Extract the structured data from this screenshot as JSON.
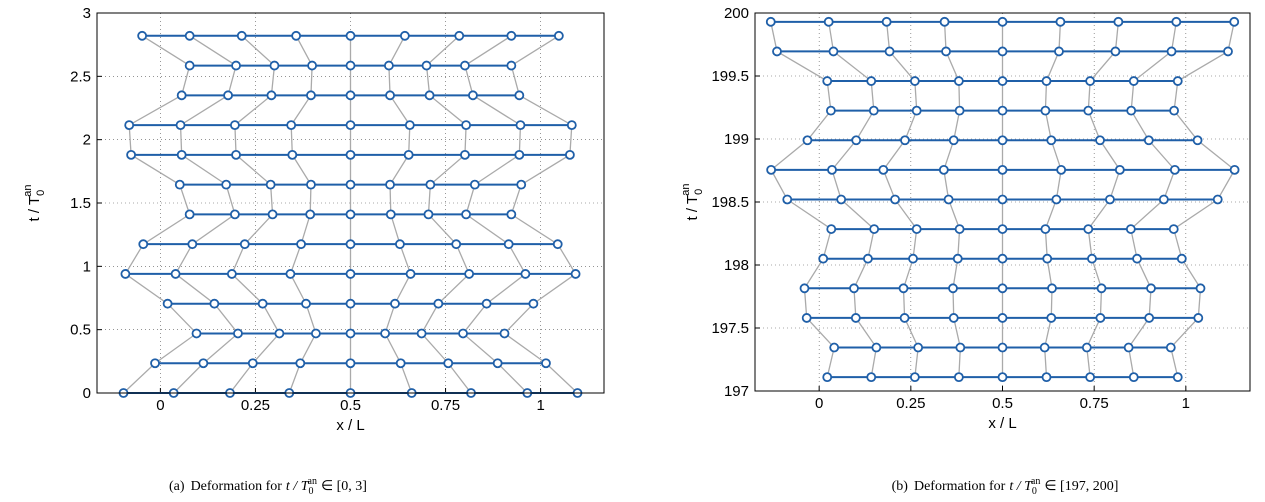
{
  "chart_data": [
    {
      "type": "chain",
      "caption": {
        "label": "(a)",
        "text": "Deformation for",
        "var": "t / T",
        "sub": "0",
        "sup": "an",
        "range": "∈ [0, 3]"
      },
      "xlabel": "x / L",
      "ylabel": {
        "text": "t / T",
        "sub": "0",
        "sup": "an"
      },
      "xlim": [
        -0.1667,
        1.1667
      ],
      "ylim": [
        0,
        3
      ],
      "xticks": [
        0,
        0.25,
        0.5,
        0.75,
        1
      ],
      "yticks": [
        0,
        0.5,
        1,
        1.5,
        2,
        2.5,
        3
      ],
      "grid": true,
      "line_color": "#1f5fa8",
      "trajectory_color": "#aaaaaa",
      "rows": [
        {
          "t": 0,
          "x": [
            -0.097,
            0.035,
            0.183,
            0.339,
            0.5,
            0.661,
            0.817,
            0.965,
            1.097
          ]
        },
        {
          "t": 0.235,
          "x": [
            -0.014,
            0.113,
            0.243,
            0.368,
            0.5,
            0.632,
            0.757,
            0.887,
            1.014
          ]
        },
        {
          "t": 0.47,
          "x": [
            0.095,
            0.204,
            0.313,
            0.409,
            0.5,
            0.591,
            0.687,
            0.796,
            0.905
          ]
        },
        {
          "t": 0.705,
          "x": [
            0.019,
            0.142,
            0.269,
            0.383,
            0.5,
            0.617,
            0.731,
            0.858,
            0.981
          ]
        },
        {
          "t": 0.94,
          "x": [
            -0.092,
            0.04,
            0.188,
            0.342,
            0.5,
            0.658,
            0.812,
            0.96,
            1.092
          ]
        },
        {
          "t": 1.175,
          "x": [
            -0.045,
            0.084,
            0.222,
            0.37,
            0.5,
            0.63,
            0.778,
            0.916,
            1.045
          ]
        },
        {
          "t": 1.41,
          "x": [
            0.077,
            0.196,
            0.295,
            0.394,
            0.5,
            0.606,
            0.705,
            0.804,
            0.923
          ]
        },
        {
          "t": 1.645,
          "x": [
            0.051,
            0.173,
            0.29,
            0.396,
            0.5,
            0.604,
            0.71,
            0.827,
            0.949
          ]
        },
        {
          "t": 1.88,
          "x": [
            -0.077,
            0.056,
            0.199,
            0.347,
            0.5,
            0.653,
            0.801,
            0.944,
            1.077
          ]
        },
        {
          "t": 2.115,
          "x": [
            -0.082,
            0.053,
            0.196,
            0.344,
            0.5,
            0.656,
            0.804,
            0.947,
            1.082
          ]
        },
        {
          "t": 2.35,
          "x": [
            0.056,
            0.178,
            0.292,
            0.396,
            0.5,
            0.604,
            0.708,
            0.822,
            0.944
          ]
        },
        {
          "t": 2.585,
          "x": [
            0.077,
            0.199,
            0.3,
            0.399,
            0.5,
            0.601,
            0.7,
            0.801,
            0.923
          ]
        },
        {
          "t": 2.82,
          "x": [
            -0.048,
            0.077,
            0.214,
            0.357,
            0.5,
            0.643,
            0.786,
            0.923,
            1.048
          ]
        }
      ]
    },
    {
      "type": "chain",
      "caption": {
        "label": "(b)",
        "text": "Deformation for",
        "var": "t / T",
        "sub": "0",
        "sup": "an",
        "range": "∈ [197, 200]"
      },
      "xlabel": "x / L",
      "ylabel": {
        "text": "t / T",
        "sub": "0",
        "sup": "an"
      },
      "xlim": [
        -0.175,
        1.175
      ],
      "ylim": [
        197,
        200
      ],
      "xticks": [
        0,
        0.25,
        0.5,
        0.75,
        1
      ],
      "yticks": [
        197,
        197.5,
        198,
        198.5,
        199,
        199.5,
        200
      ],
      "grid": true,
      "line_color": "#1f5fa8",
      "trajectory_color": "#aaaaaa",
      "rows": [
        {
          "t": 197.11,
          "x": [
            0.022,
            0.142,
            0.261,
            0.381,
            0.5,
            0.62,
            0.739,
            0.858,
            0.978
          ]
        },
        {
          "t": 197.345,
          "x": [
            0.041,
            0.156,
            0.27,
            0.385,
            0.5,
            0.615,
            0.73,
            0.844,
            0.959
          ]
        },
        {
          "t": 197.58,
          "x": [
            -0.034,
            0.1,
            0.233,
            0.367,
            0.5,
            0.633,
            0.767,
            0.9,
            1.034
          ]
        },
        {
          "t": 197.815,
          "x": [
            -0.04,
            0.095,
            0.23,
            0.365,
            0.5,
            0.635,
            0.77,
            0.905,
            1.04
          ]
        },
        {
          "t": 198.05,
          "x": [
            0.011,
            0.133,
            0.256,
            0.378,
            0.5,
            0.622,
            0.744,
            0.867,
            0.989
          ]
        },
        {
          "t": 198.285,
          "x": [
            0.033,
            0.15,
            0.266,
            0.383,
            0.5,
            0.617,
            0.734,
            0.85,
            0.967
          ]
        },
        {
          "t": 198.52,
          "x": [
            -0.087,
            0.06,
            0.207,
            0.353,
            0.5,
            0.647,
            0.793,
            0.94,
            1.087
          ]
        },
        {
          "t": 198.755,
          "x": [
            -0.131,
            0.035,
            0.175,
            0.34,
            0.5,
            0.66,
            0.82,
            0.97,
            1.133
          ]
        },
        {
          "t": 198.99,
          "x": [
            -0.032,
            0.101,
            0.234,
            0.367,
            0.5,
            0.633,
            0.766,
            0.899,
            1.032
          ]
        },
        {
          "t": 199.225,
          "x": [
            0.032,
            0.149,
            0.266,
            0.383,
            0.5,
            0.617,
            0.734,
            0.851,
            0.968
          ]
        },
        {
          "t": 199.46,
          "x": [
            0.022,
            0.142,
            0.261,
            0.381,
            0.5,
            0.62,
            0.739,
            0.858,
            0.978
          ]
        },
        {
          "t": 199.695,
          "x": [
            -0.115,
            0.039,
            0.192,
            0.346,
            0.5,
            0.654,
            0.808,
            0.961,
            1.115
          ]
        },
        {
          "t": 199.93,
          "x": [
            -0.132,
            0.026,
            0.184,
            0.342,
            0.5,
            0.658,
            0.816,
            0.974,
            1.132
          ]
        }
      ]
    }
  ]
}
